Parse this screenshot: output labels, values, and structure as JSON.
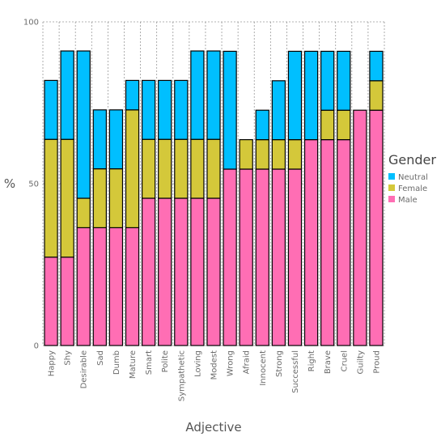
{
  "chart_data": {
    "type": "bar",
    "stacked": true,
    "categories": [
      "Happy",
      "Shy",
      "Desirable",
      "Sad",
      "Dumb",
      "Mature",
      "Smart",
      "Polite",
      "Sympathetic",
      "Loving",
      "Modest",
      "Wrong",
      "Afraid",
      "Innocent",
      "Strong",
      "Successful",
      "Right",
      "Brave",
      "Cruel",
      "Guilty",
      "Proud"
    ],
    "series": [
      {
        "name": "Male",
        "color": "#ff6eb4",
        "values": [
          27.3,
          27.3,
          36.4,
          36.4,
          36.4,
          36.4,
          45.5,
          45.5,
          45.5,
          45.5,
          45.5,
          54.5,
          54.5,
          54.5,
          54.5,
          54.5,
          63.6,
          63.6,
          63.6,
          72.7,
          72.7
        ]
      },
      {
        "name": "Female",
        "color": "#d4c83a",
        "values": [
          36.4,
          36.4,
          9.1,
          18.2,
          18.2,
          36.4,
          18.2,
          18.2,
          18.2,
          18.2,
          18.2,
          0,
          9.1,
          9.1,
          9.1,
          9.1,
          0,
          9.1,
          9.1,
          0,
          9.1
        ]
      },
      {
        "name": "Neutral",
        "color": "#00bfff",
        "values": [
          18.2,
          27.3,
          45.5,
          18.2,
          18.2,
          9.1,
          18.2,
          18.2,
          18.2,
          27.3,
          27.3,
          36.4,
          0,
          9.1,
          18.2,
          27.3,
          27.3,
          18.2,
          18.2,
          0,
          9.1
        ]
      }
    ],
    "xlabel": "Adjective",
    "ylabel": "%",
    "ylim": [
      0,
      100
    ],
    "yticks": [
      0,
      50,
      100
    ],
    "grid": true,
    "legend": {
      "title": "Gender",
      "placement": "right",
      "order": [
        "Neutral",
        "Female",
        "Male"
      ]
    }
  }
}
